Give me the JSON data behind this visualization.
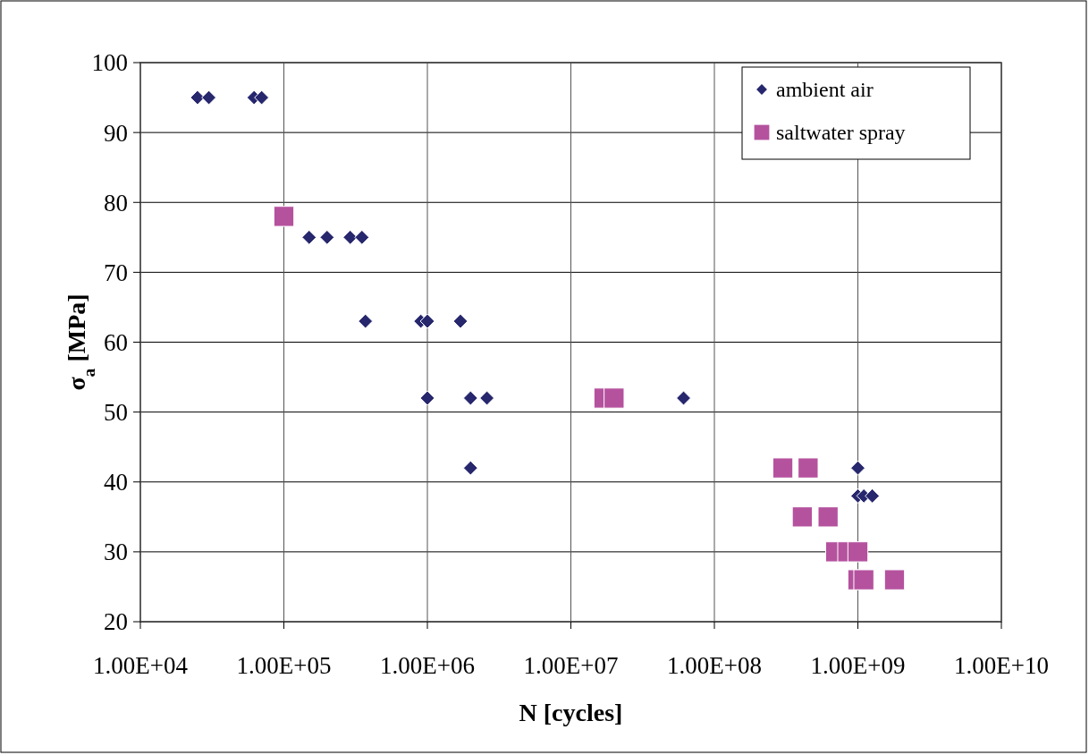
{
  "chart_data": {
    "type": "scatter",
    "xlabel": "N [cycles]",
    "ylabel": "σ$_{a}$ [MPa]",
    "log": "x",
    "grid": true,
    "legend": "top right",
    "xlim": [
      10000,
      10000000000
    ],
    "xticks": [
      {
        "value": 10000,
        "label": "1.00E+04"
      },
      {
        "value": 100000,
        "label": "1.00E+05"
      },
      {
        "value": 1000000,
        "label": "1.00E+06"
      },
      {
        "value": 10000000,
        "label": "1.00E+07"
      },
      {
        "value": 100000000,
        "label": "1.00E+08"
      },
      {
        "value": 1000000000,
        "label": "1.00E+09"
      },
      {
        "value": 10000000000,
        "label": "1.00E+10"
      }
    ],
    "ylim": [
      20,
      100
    ],
    "yticks": [
      20,
      30,
      40,
      50,
      60,
      70,
      80,
      90,
      100
    ],
    "series": [
      {
        "name": "ambient air",
        "color": "#27276e",
        "marker": "diamond",
        "x": [
          25000,
          30000,
          62000,
          70000,
          150000,
          200000,
          290000,
          350000,
          370000,
          900000,
          1000000,
          1700000,
          1000000,
          2000000,
          2600000,
          2000000,
          61000000,
          1000000000,
          1000000000,
          1100000000,
          1260000000
        ],
        "values": [
          95,
          95,
          95,
          95,
          75,
          75,
          75,
          75,
          63,
          63,
          63,
          63,
          52,
          52,
          52,
          42,
          52,
          42,
          38,
          38,
          38
        ]
      },
      {
        "name": "saltwater spray",
        "color": "#b5529e",
        "marker": "square",
        "x": [
          100000,
          17000000,
          20000000,
          300000000,
          450000000,
          410000000,
          620000000,
          700000000,
          850000000,
          1000000000,
          1000000000,
          1100000000,
          1800000000
        ],
        "values": [
          78,
          52,
          52,
          42,
          42,
          35,
          35,
          30,
          30,
          30,
          26,
          26,
          26
        ]
      }
    ]
  }
}
